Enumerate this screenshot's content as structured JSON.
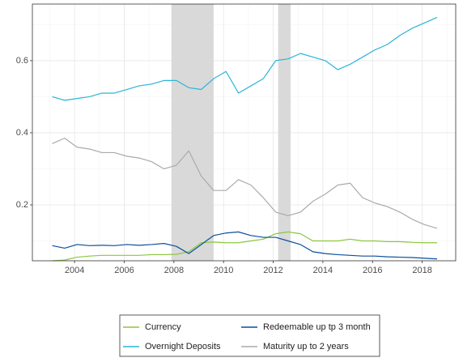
{
  "chart_data": {
    "type": "line",
    "x": [
      2003.1,
      2003.6,
      2004.1,
      2004.6,
      2005.1,
      2005.6,
      2006.1,
      2006.6,
      2007.1,
      2007.6,
      2008.1,
      2008.6,
      2009.1,
      2009.6,
      2010.1,
      2010.6,
      2011.1,
      2011.6,
      2012.1,
      2012.6,
      2013.1,
      2013.6,
      2014.1,
      2014.6,
      2015.1,
      2015.6,
      2016.1,
      2016.6,
      2017.1,
      2017.6,
      2018.1,
      2018.6
    ],
    "series": [
      {
        "name": "Currency",
        "color": "#8dc63f",
        "values": [
          0.045,
          0.047,
          0.055,
          0.058,
          0.06,
          0.06,
          0.06,
          0.06,
          0.062,
          0.062,
          0.063,
          0.07,
          0.095,
          0.097,
          0.095,
          0.095,
          0.1,
          0.105,
          0.12,
          0.125,
          0.12,
          0.1,
          0.1,
          0.1,
          0.105,
          0.1,
          0.1,
          0.098,
          0.098,
          0.096,
          0.095,
          0.095
        ]
      },
      {
        "name": "Overnight Deposits",
        "color": "#29b6d6",
        "values": [
          0.5,
          0.49,
          0.495,
          0.5,
          0.51,
          0.51,
          0.52,
          0.53,
          0.535,
          0.545,
          0.545,
          0.525,
          0.52,
          0.55,
          0.57,
          0.51,
          0.53,
          0.55,
          0.6,
          0.605,
          0.62,
          0.61,
          0.6,
          0.575,
          0.59,
          0.61,
          0.63,
          0.645,
          0.67,
          0.69,
          0.705,
          0.72
        ]
      },
      {
        "name": "Redeemable up tp 3 month",
        "color": "#0b4f9c",
        "values": [
          0.087,
          0.08,
          0.09,
          0.087,
          0.088,
          0.087,
          0.09,
          0.088,
          0.09,
          0.093,
          0.085,
          0.065,
          0.09,
          0.115,
          0.122,
          0.125,
          0.115,
          0.11,
          0.11,
          0.1,
          0.09,
          0.07,
          0.065,
          0.062,
          0.06,
          0.058,
          0.058,
          0.056,
          0.055,
          0.054,
          0.052,
          0.05
        ]
      },
      {
        "name": "Maturity up to 2 years",
        "color": "#aaaaaa",
        "values": [
          0.37,
          0.385,
          0.36,
          0.355,
          0.345,
          0.345,
          0.335,
          0.33,
          0.32,
          0.3,
          0.31,
          0.35,
          0.28,
          0.24,
          0.24,
          0.27,
          0.255,
          0.22,
          0.18,
          0.17,
          0.18,
          0.21,
          0.23,
          0.255,
          0.26,
          0.22,
          0.205,
          0.195,
          0.18,
          0.16,
          0.145,
          0.135
        ]
      }
    ],
    "shaded_regions": [
      [
        2007.9,
        2009.6
      ],
      [
        2012.2,
        2012.7
      ]
    ],
    "xlim": [
      2002.3,
      2019.35
    ],
    "xticks": [
      2004,
      2006,
      2008,
      2010,
      2012,
      2014,
      2016,
      2018
    ],
    "ylim": [
      0.045,
      0.757
    ],
    "yticks": [
      0.2,
      0.4,
      0.6
    ],
    "grid": true,
    "legend": "bottom"
  }
}
